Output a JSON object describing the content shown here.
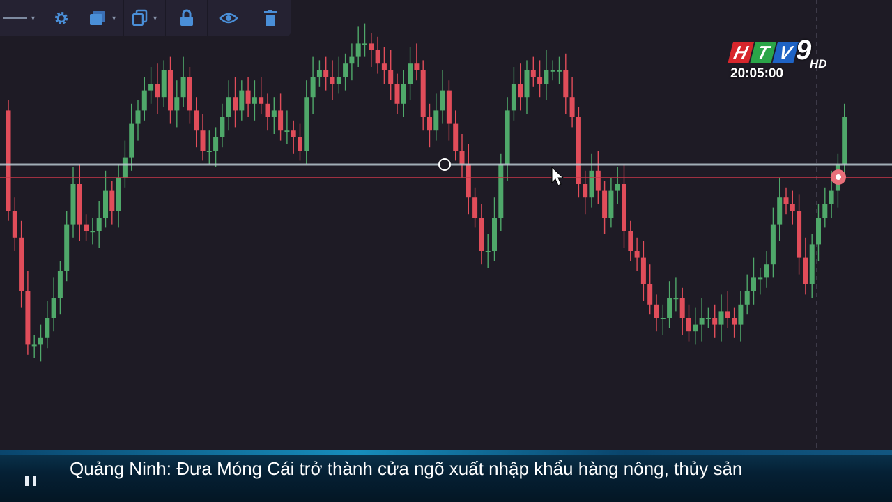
{
  "toolbar": {
    "buttons": [
      {
        "name": "line-style",
        "icon": "line-style-icon"
      },
      {
        "name": "settings",
        "icon": "gear-icon"
      },
      {
        "name": "layer",
        "icon": "layer-icon"
      },
      {
        "name": "copy",
        "icon": "copy-icon"
      },
      {
        "name": "lock",
        "icon": "lock-icon"
      },
      {
        "name": "visibility",
        "icon": "eye-icon"
      },
      {
        "name": "delete",
        "icon": "trash-icon"
      }
    ],
    "accent": "#4a8fd8"
  },
  "broadcast": {
    "logo_letters": [
      "H",
      "T",
      "V"
    ],
    "logo_channel": "9",
    "logo_hd": "HD",
    "clock": "20:05:00"
  },
  "ticker": {
    "text": "Quảng Ninh: Đưa Móng Cái trở thành cửa ngõ xuất nhập khẩu hàng nông, thủy sản"
  },
  "chart_data": {
    "type": "candlestick",
    "colors": {
      "up": "#4fa86a",
      "down": "#e14d5a",
      "background": "#1e1b25"
    },
    "lines": [
      {
        "kind": "horizontal",
        "color": "#b8c8d0"
      },
      {
        "kind": "horizontal",
        "color": "#c8384a"
      }
    ],
    "closes": [
      62,
      54,
      38,
      22,
      22,
      24,
      30,
      36,
      44,
      58,
      70,
      58,
      56,
      56,
      60,
      68,
      62,
      72,
      78,
      88,
      92,
      98,
      100,
      96,
      104,
      92,
      96,
      102,
      92,
      86,
      80,
      80,
      84,
      90,
      96,
      92,
      98,
      94,
      96,
      94,
      90,
      92,
      86,
      86,
      84,
      80,
      96,
      102,
      104,
      102,
      100,
      102,
      106,
      108,
      112,
      112,
      110,
      106,
      104,
      100,
      94,
      100,
      106,
      104,
      90,
      86,
      92,
      98,
      88,
      80,
      76,
      66,
      60,
      50,
      50,
      60,
      76,
      92,
      100,
      96,
      104,
      102,
      100,
      104,
      104,
      104,
      96,
      90,
      70,
      66,
      74,
      68,
      60,
      68,
      70,
      56,
      50,
      48,
      40,
      34,
      30,
      30,
      36,
      36,
      30,
      26,
      28,
      30,
      30,
      28,
      32,
      30,
      28,
      34,
      38,
      42,
      42,
      46,
      58,
      66,
      64,
      62,
      48,
      40,
      52,
      60,
      64,
      68,
      76,
      90
    ]
  }
}
